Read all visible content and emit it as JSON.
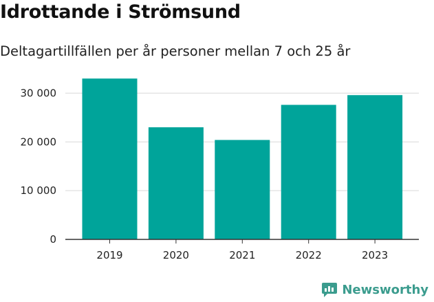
{
  "chart_data": {
    "type": "bar",
    "title": "Idrottande i Strömsund",
    "subtitle": "Deltagartillfällen per år personer mellan 7 och 25 år",
    "categories": [
      "2019",
      "2020",
      "2021",
      "2022",
      "2023"
    ],
    "values": [
      33000,
      23000,
      20400,
      27600,
      29600
    ],
    "ylim": [
      0,
      35000
    ],
    "yticks": [
      0,
      10000,
      20000,
      30000
    ],
    "ytick_labels": [
      "0",
      "10 000",
      "20 000",
      "30 000"
    ],
    "xlabel": "",
    "ylabel": "",
    "grid": true,
    "bar_color": "#00a49a"
  },
  "brand": {
    "name": "Newsworthy",
    "color": "#3b9c8e"
  }
}
